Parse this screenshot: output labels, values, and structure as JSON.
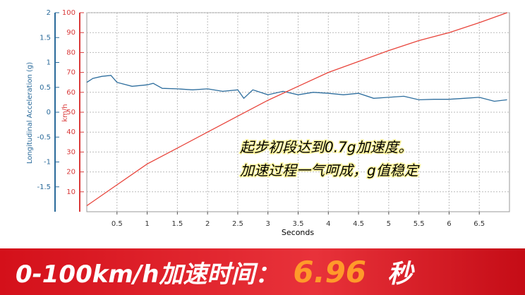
{
  "chart_data": {
    "type": "line",
    "x_label": "Seconds",
    "y_label": "Longitudinal Acceleration (g)",
    "y2_label": "km/h",
    "annotation": [
      "起步初段达到0.7g加速度。",
      "加速过程一气呵成，g值稳定"
    ],
    "xlim": [
      0,
      7
    ],
    "xticks": [
      0.5,
      1,
      1.5,
      2,
      2.5,
      3,
      3.5,
      4,
      4.5,
      5,
      5.5,
      6,
      6.5
    ],
    "ylim": [
      -2,
      2
    ],
    "yticks": [
      2,
      1.5,
      1,
      0.5,
      0,
      -0.5,
      -1,
      -1.5
    ],
    "y2lim": [
      0,
      100
    ],
    "y2ticks": [
      100,
      90,
      80,
      70,
      60,
      50,
      40,
      30,
      20,
      10
    ],
    "y_color": "#2a6a9a",
    "y2_color": "#d93a3a",
    "grid": true,
    "series": [
      {
        "color": "#2e6e9e",
        "axis": "y",
        "x": [
          0,
          0.1,
          0.25,
          0.4,
          0.5,
          0.75,
          1,
          1.1,
          1.25,
          1.5,
          1.75,
          2,
          2.25,
          2.5,
          2.6,
          2.75,
          3,
          3.25,
          3.5,
          3.75,
          4,
          4.25,
          4.5,
          4.75,
          5,
          5.25,
          5.5,
          5.75,
          6,
          6.25,
          6.5,
          6.75,
          6.96
        ],
        "values": [
          0.6,
          0.68,
          0.72,
          0.74,
          0.6,
          0.52,
          0.55,
          0.58,
          0.48,
          0.47,
          0.45,
          0.47,
          0.42,
          0.45,
          0.28,
          0.45,
          0.35,
          0.42,
          0.35,
          0.4,
          0.38,
          0.35,
          0.38,
          0.28,
          0.3,
          0.32,
          0.25,
          0.26,
          0.26,
          0.28,
          0.3,
          0.22,
          0.25
        ]
      },
      {
        "color": "#e8453c",
        "axis": "y2",
        "x": [
          0,
          0.5,
          1,
          1.5,
          2,
          2.5,
          3,
          3.5,
          4,
          4.5,
          5,
          5.5,
          6,
          6.5,
          6.96
        ],
        "values": [
          3,
          13.5,
          24,
          32,
          40,
          48,
          56,
          63,
          70,
          75.5,
          81,
          86,
          90,
          95,
          100
        ]
      }
    ]
  },
  "banner": {
    "label": "0-100km/h加速时间：",
    "time": "6.96",
    "unit": "秒"
  }
}
